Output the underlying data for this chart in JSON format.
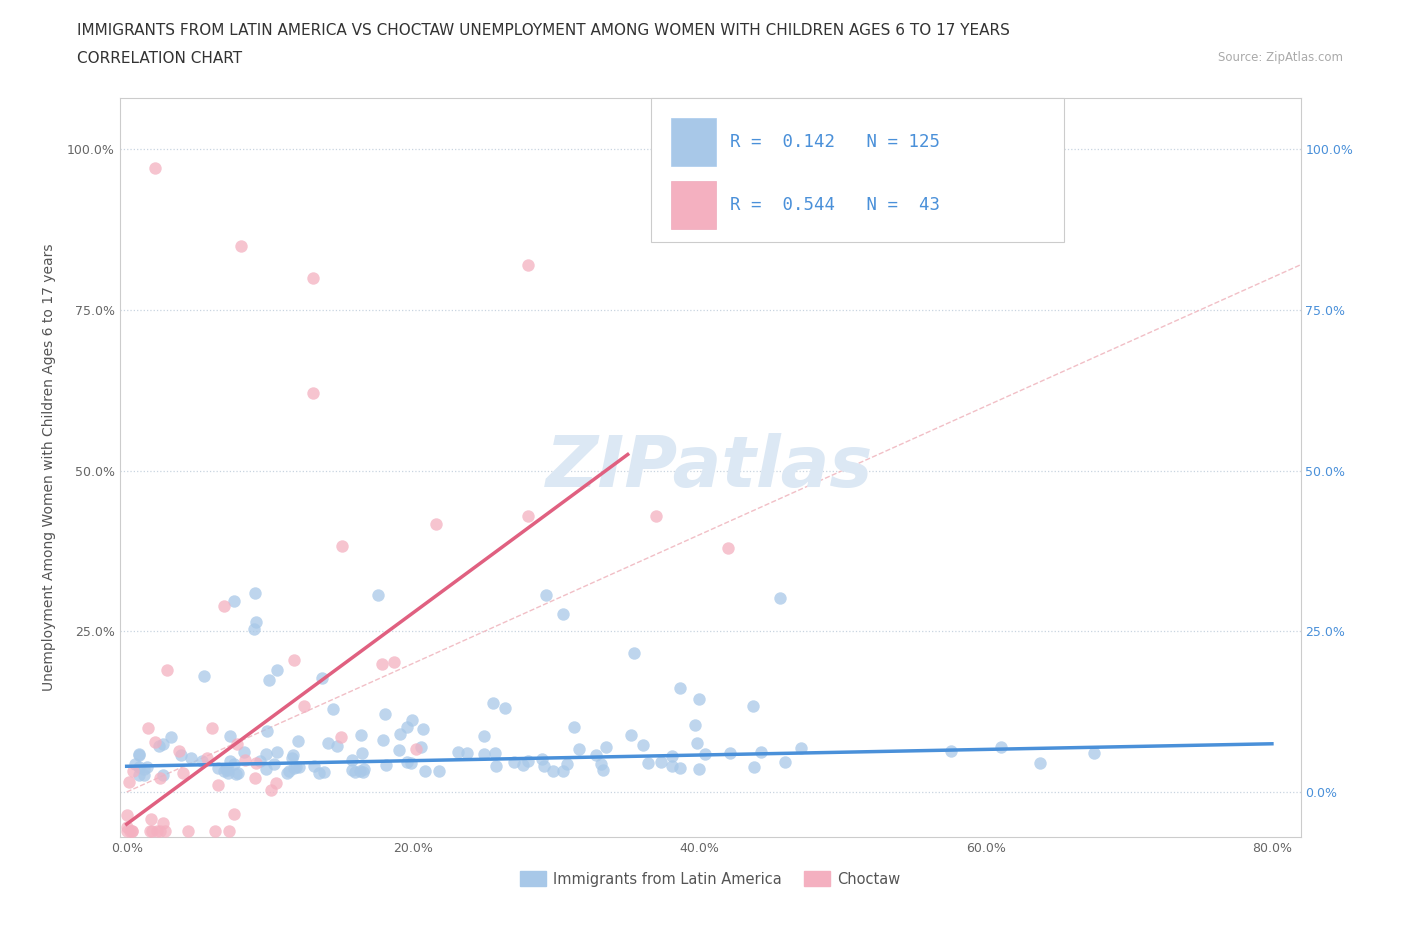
{
  "title_line1": "IMMIGRANTS FROM LATIN AMERICA VS CHOCTAW UNEMPLOYMENT AMONG WOMEN WITH CHILDREN AGES 6 TO 17 YEARS",
  "title_line2": "CORRELATION CHART",
  "source_text": "Source: ZipAtlas.com",
  "ylabel": "Unemployment Among Women with Children Ages 6 to 17 years",
  "xlim": [
    -0.005,
    0.82
  ],
  "ylim": [
    -0.07,
    1.08
  ],
  "x_ticks": [
    0.0,
    0.2,
    0.4,
    0.6,
    0.8
  ],
  "x_tick_labels": [
    "0.0%",
    "20.0%",
    "40.0%",
    "60.0%",
    "80.0%"
  ],
  "y_ticks": [
    0.0,
    0.25,
    0.5,
    0.75,
    1.0
  ],
  "y_tick_labels_left": [
    "",
    "25.0%",
    "50.0%",
    "75.0%",
    "100.0%"
  ],
  "y_tick_labels_right": [
    "0.0%",
    "25.0%",
    "50.0%",
    "75.0%",
    "100.0%"
  ],
  "watermark": "ZIPatlas",
  "blue_R": "0.142",
  "blue_N": "125",
  "pink_R": "0.544",
  "pink_N": "43",
  "blue_color": "#4a90d9",
  "blue_scatter_color": "#a8c8e8",
  "pink_color": "#e06080",
  "pink_scatter_color": "#f4b0c0",
  "diagonal_color": "#f0b8c0",
  "watermark_color": "#dce8f4",
  "grid_color": "#c8d4e0",
  "background_color": "#ffffff",
  "legend_label_1": "Immigrants from Latin America",
  "legend_label_2": "Choctaw",
  "title_fontsize": 11,
  "axis_label_fontsize": 10,
  "tick_fontsize": 9,
  "watermark_fontsize": 52
}
